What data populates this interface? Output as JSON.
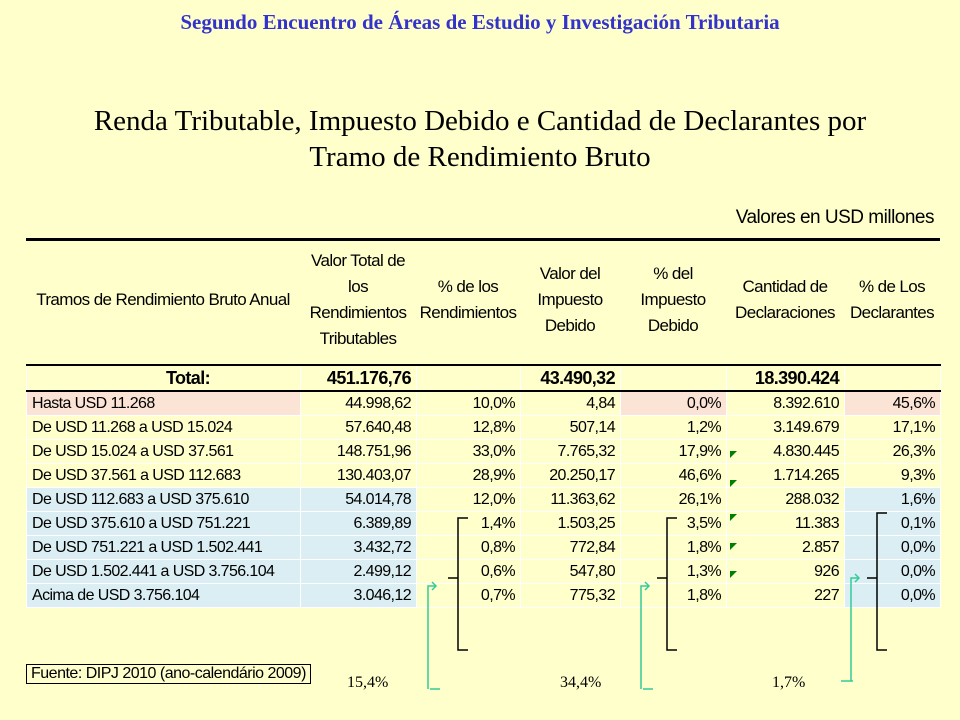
{
  "header": {
    "event_title": "Segundo Encuentro de Áreas de Estudio y Investigación Tributaria",
    "title_line1": "Renda Tributable, Impuesto Debido e Cantidad de Declarantes por",
    "title_line2": "Tramo de Rendimiento Bruto",
    "units": "Valores en USD millones"
  },
  "columns": [
    "Tramos de Rendimiento Bruto Anual",
    "Valor Total de los\nRendimientos\nTributables",
    "% de los\nRendimientos",
    "Valor del\nImpuesto\nDebido",
    "% del\nImpuesto\nDebido",
    "Cantidad de\nDeclaraciones",
    "% de Los\nDeclarantes"
  ],
  "total": {
    "label": "Total:",
    "rendimientos": "451.176,76",
    "impuesto": "43.490,32",
    "declaraciones": "18.390.424"
  },
  "rows": [
    {
      "tramo": "Hasta USD 11.268",
      "rend": "44.998,62",
      "pct_rend": "10,0%",
      "imp": "4,84",
      "pct_imp": "0,0%",
      "decl": "8.392.610",
      "pct_decl": "45,6%"
    },
    {
      "tramo": "De USD 11.268 a USD 15.024",
      "rend": "57.640,48",
      "pct_rend": "12,8%",
      "imp": "507,14",
      "pct_imp": "1,2%",
      "decl": "3.149.679",
      "pct_decl": "17,1%"
    },
    {
      "tramo": "De USD 15.024 a USD 37.561",
      "rend": "148.751,96",
      "pct_rend": "33,0%",
      "imp": "7.765,32",
      "pct_imp": "17,9%",
      "decl": "4.830.445",
      "pct_decl": "26,3%"
    },
    {
      "tramo": "De USD 37.561 a USD 112.683",
      "rend": "130.403,07",
      "pct_rend": "28,9%",
      "imp": "20.250,17",
      "pct_imp": "46,6%",
      "decl": "1.714.265",
      "pct_decl": "9,3%"
    },
    {
      "tramo": "De USD 112.683 a USD 375.610",
      "rend": "54.014,78",
      "pct_rend": "12,0%",
      "imp": "11.363,62",
      "pct_imp": "26,1%",
      "decl": "288.032",
      "pct_decl": "1,6%"
    },
    {
      "tramo": "De USD 375.610 a USD 751.221",
      "rend": "6.389,89",
      "pct_rend": "1,4%",
      "imp": "1.503,25",
      "pct_imp": "3,5%",
      "decl": "11.383",
      "pct_decl": "0,1%"
    },
    {
      "tramo": "De USD 751.221 a USD 1.502.441",
      "rend": "3.432,72",
      "pct_rend": "0,8%",
      "imp": "772,84",
      "pct_imp": "1,8%",
      "decl": "2.857",
      "pct_decl": "0,0%"
    },
    {
      "tramo": "De USD 1.502.441 a USD 3.756.104",
      "rend": "2.499,12",
      "pct_rend": "0,6%",
      "imp": "547,80",
      "pct_imp": "1,3%",
      "decl": "926",
      "pct_decl": "0,0%"
    },
    {
      "tramo": "Acima de USD 3.756.104",
      "rend": "3.046,12",
      "pct_rend": "0,7%",
      "imp": "775,32",
      "pct_imp": "1,8%",
      "decl": "227",
      "pct_decl": "0,0%"
    }
  ],
  "source": "Fuente: DIPJ 2010 (ano-calendário 2009)",
  "summary": {
    "rendimientos": "15,4%",
    "impuesto": "34,4%",
    "declarantes": "1,7%"
  },
  "colors": {
    "background": "#ffffcc",
    "event_title": "#3333cc",
    "row_pink": "#fbe4d5",
    "row_blue": "#daeef3",
    "bracket_teal": "#33cc99",
    "indicator_green": "#008000"
  }
}
